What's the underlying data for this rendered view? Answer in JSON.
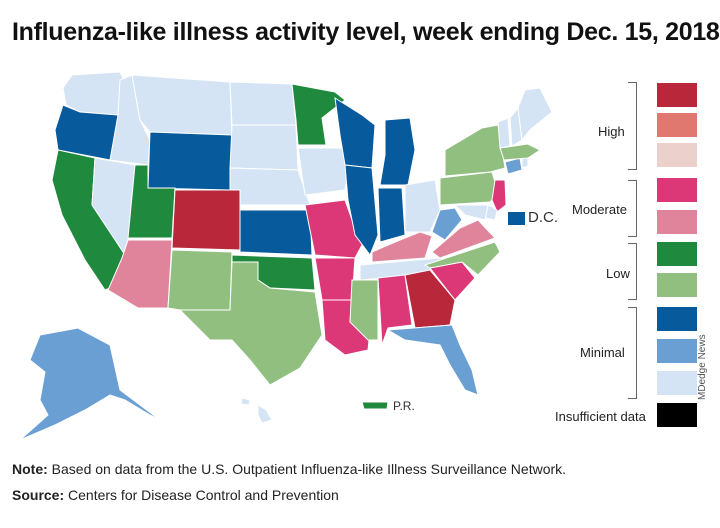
{
  "title": "Influenza-like illness activity level, week ending Dec. 15, 2018",
  "colors": {
    "high_3": "#b8283a",
    "high_2": "#e07870",
    "high_1": "#ecd0cc",
    "moderate_2": "#dc3878",
    "moderate_1": "#e0849c",
    "low_2": "#1f8a3e",
    "low_1": "#90bf80",
    "minimal_3": "#075a9c",
    "minimal_2": "#6a9fd4",
    "minimal_1": "#d4e4f4",
    "insufficient": "#000000",
    "border": "#ffffff"
  },
  "legend": {
    "groups": [
      {
        "label": "High"
      },
      {
        "label": "Moderate"
      },
      {
        "label": "Low"
      },
      {
        "label": "Minimal"
      }
    ],
    "insufficient_label": "Insufficient data"
  },
  "labels": {
    "dc": "D.C.",
    "pr": "P.R."
  },
  "watermark": "MDedge News",
  "footnote": {
    "note_label": "Note:",
    "note_text": " Based on data from the U.S. Outpatient Influenza-like Illness Surveillance Network.",
    "source_label": "Source:",
    "source_text": " Centers for Disease Control and Prevention"
  },
  "states": {
    "WA": "minimal_1",
    "OR": "minimal_3",
    "CA": "low_2",
    "NV": "minimal_1",
    "ID": "minimal_1",
    "MT": "minimal_1",
    "WY": "minimal_3",
    "UT": "low_2",
    "AZ": "moderate_1",
    "CO": "high_3",
    "NM": "low_1",
    "ND": "minimal_1",
    "SD": "minimal_1",
    "NE": "minimal_1",
    "KS": "minimal_3",
    "OK": "low_2",
    "TX": "low_1",
    "MN": "low_2",
    "IA": "minimal_1",
    "MO": "moderate_2",
    "AR": "moderate_2",
    "LA": "moderate_2",
    "WI": "minimal_3",
    "IL": "minimal_3",
    "MI": "minimal_3",
    "IN": "minimal_3",
    "OH": "minimal_1",
    "KY": "moderate_1",
    "TN": "minimal_1",
    "MS": "low_1",
    "AL": "moderate_2",
    "GA": "high_3",
    "FL": "minimal_2",
    "SC": "moderate_2",
    "NC": "low_1",
    "VA": "moderate_1",
    "WV": "minimal_2",
    "PA": "low_1",
    "NY": "low_1",
    "NJ": "moderate_2",
    "DE": "minimal_1",
    "MD": "minimal_1",
    "CT": "minimal_2",
    "RI": "minimal_1",
    "MA": "low_1",
    "VT": "minimal_1",
    "NH": "minimal_1",
    "ME": "minimal_1",
    "AK": "minimal_2",
    "HI": "minimal_1",
    "DC": "minimal_3",
    "PR": "low_2"
  }
}
